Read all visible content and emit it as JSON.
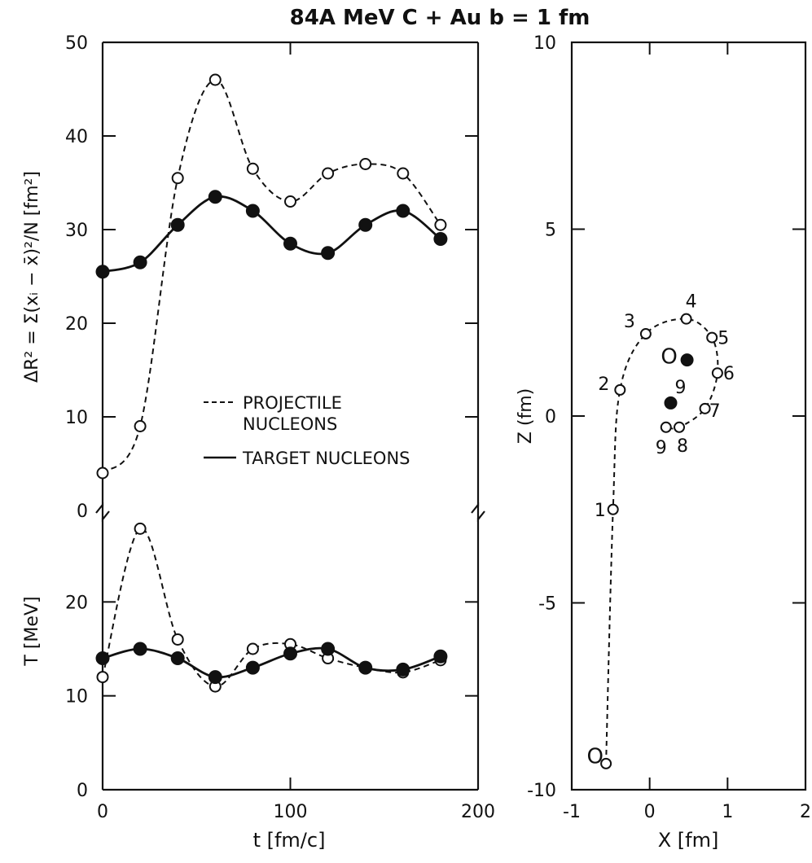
{
  "chart_data": [
    {
      "type": "line",
      "panel": "upper-left",
      "title": "84A MeV  C + Au   b = 1 fm",
      "ylabel": "ΔR² = Σ(xᵢ − x̄)²/N   [fm²]",
      "xlim": [
        0,
        200
      ],
      "ylim": [
        0,
        50
      ],
      "yticks": [
        "0",
        "10",
        "20",
        "30",
        "40",
        "50"
      ],
      "legend": {
        "placement": "center",
        "entries": [
          "PROJECTILE NUCLEONS",
          "TARGET NUCLEONS"
        ]
      },
      "series": [
        {
          "name": "PROJECTILE NUCLEONS",
          "style": "dashed",
          "marker": "open-circle",
          "x": [
            0,
            20,
            40,
            60,
            80,
            100,
            120,
            140,
            160,
            180
          ],
          "y": [
            4,
            9,
            35.5,
            46,
            36.5,
            33,
            36,
            37,
            36,
            30.5
          ]
        },
        {
          "name": "TARGET NUCLEONS",
          "style": "solid",
          "marker": "filled-circle",
          "x": [
            0,
            20,
            40,
            60,
            80,
            100,
            120,
            140,
            160,
            180
          ],
          "y": [
            25.5,
            26.5,
            30.5,
            33.5,
            32,
            28.5,
            27.5,
            30.5,
            32,
            29
          ]
        }
      ]
    },
    {
      "type": "line",
      "panel": "lower-left",
      "xlabel": "t [fm/c]",
      "ylabel": "T  [MeV]",
      "xlim": [
        0,
        200
      ],
      "ylim": [
        0,
        30
      ],
      "xticks": [
        "0",
        "100",
        "200"
      ],
      "yticks": [
        "0",
        "10",
        "20"
      ],
      "series": [
        {
          "name": "PROJECTILE NUCLEONS",
          "style": "dashed",
          "marker": "open-circle",
          "x": [
            0,
            20,
            40,
            60,
            80,
            100,
            120,
            140,
            160,
            180
          ],
          "y": [
            12,
            27.8,
            16,
            11,
            15,
            15.5,
            14,
            13,
            12.5,
            13.8
          ]
        },
        {
          "name": "TARGET NUCLEONS",
          "style": "solid",
          "marker": "filled-circle",
          "x": [
            0,
            20,
            40,
            60,
            80,
            100,
            120,
            140,
            160,
            180
          ],
          "y": [
            14,
            15,
            14,
            12,
            13,
            14.5,
            15,
            13,
            12.8,
            14.2
          ]
        }
      ]
    },
    {
      "type": "scatter",
      "panel": "right",
      "xlabel": "X [fm]",
      "ylabel": "Z (fm)",
      "xlim": [
        -1,
        2
      ],
      "ylim": [
        -10,
        10
      ],
      "xticks": [
        "-1",
        "0",
        "1",
        "2"
      ],
      "yticks": [
        "-10",
        "-5",
        "0",
        "5",
        "10"
      ],
      "trajectory": {
        "style": "dashed",
        "marker": "open-circle",
        "points": [
          {
            "label": "",
            "x": -0.56,
            "y": -9.3
          },
          {
            "label": "1",
            "x": -0.47,
            "y": -2.5
          },
          {
            "label": "2",
            "x": -0.38,
            "y": 0.7
          },
          {
            "label": "3",
            "x": -0.05,
            "y": 2.2
          },
          {
            "label": "4",
            "x": 0.47,
            "y": 2.6
          },
          {
            "label": "5",
            "x": 0.8,
            "y": 2.1
          },
          {
            "label": "6",
            "x": 0.87,
            "y": 1.15
          },
          {
            "label": "7",
            "x": 0.71,
            "y": 0.2
          },
          {
            "label": "8",
            "x": 0.38,
            "y": -0.3
          },
          {
            "label": "9",
            "x": 0.21,
            "y": -0.3
          }
        ]
      },
      "open_marker_labels": [
        {
          "text": "O",
          "x": -0.7,
          "y": -9.1
        },
        {
          "text": "O",
          "x": 0.25,
          "y": 1.6
        }
      ],
      "filled_points": [
        {
          "label": "",
          "x": 0.48,
          "y": 1.5
        },
        {
          "label": "9",
          "x": 0.27,
          "y": 0.35
        }
      ]
    }
  ]
}
